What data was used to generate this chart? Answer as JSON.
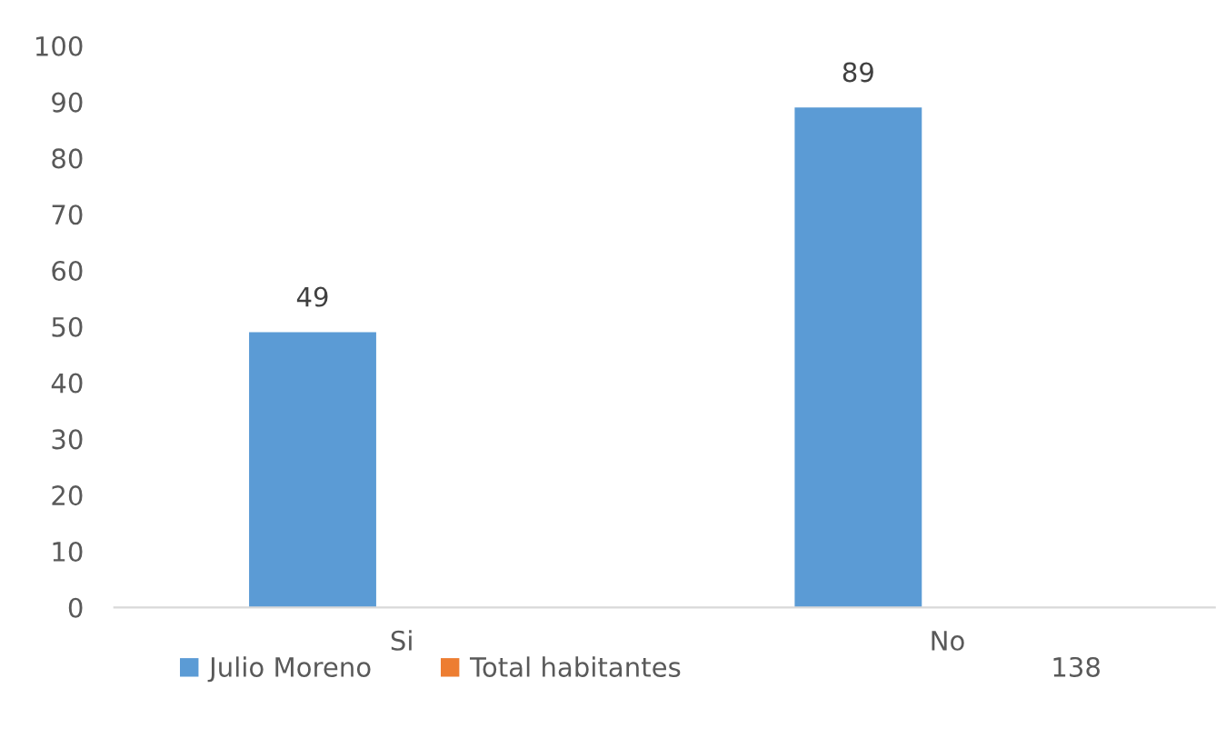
{
  "chart_data": {
    "type": "bar",
    "categories": [
      "Si",
      "No"
    ],
    "series": [
      {
        "name": "Julio Moreno",
        "color": "#5b9bd5",
        "values": [
          49,
          89
        ]
      },
      {
        "name": "Total habitantes",
        "color": "#ed7d31",
        "values": [
          null,
          null
        ]
      }
    ],
    "ylim": [
      0,
      100
    ],
    "yticks": [
      0,
      10,
      20,
      30,
      40,
      50,
      60,
      70,
      80,
      90,
      100
    ],
    "data_labels": true,
    "grid": false,
    "legend": "bottom",
    "annotations": [
      "138"
    ]
  }
}
